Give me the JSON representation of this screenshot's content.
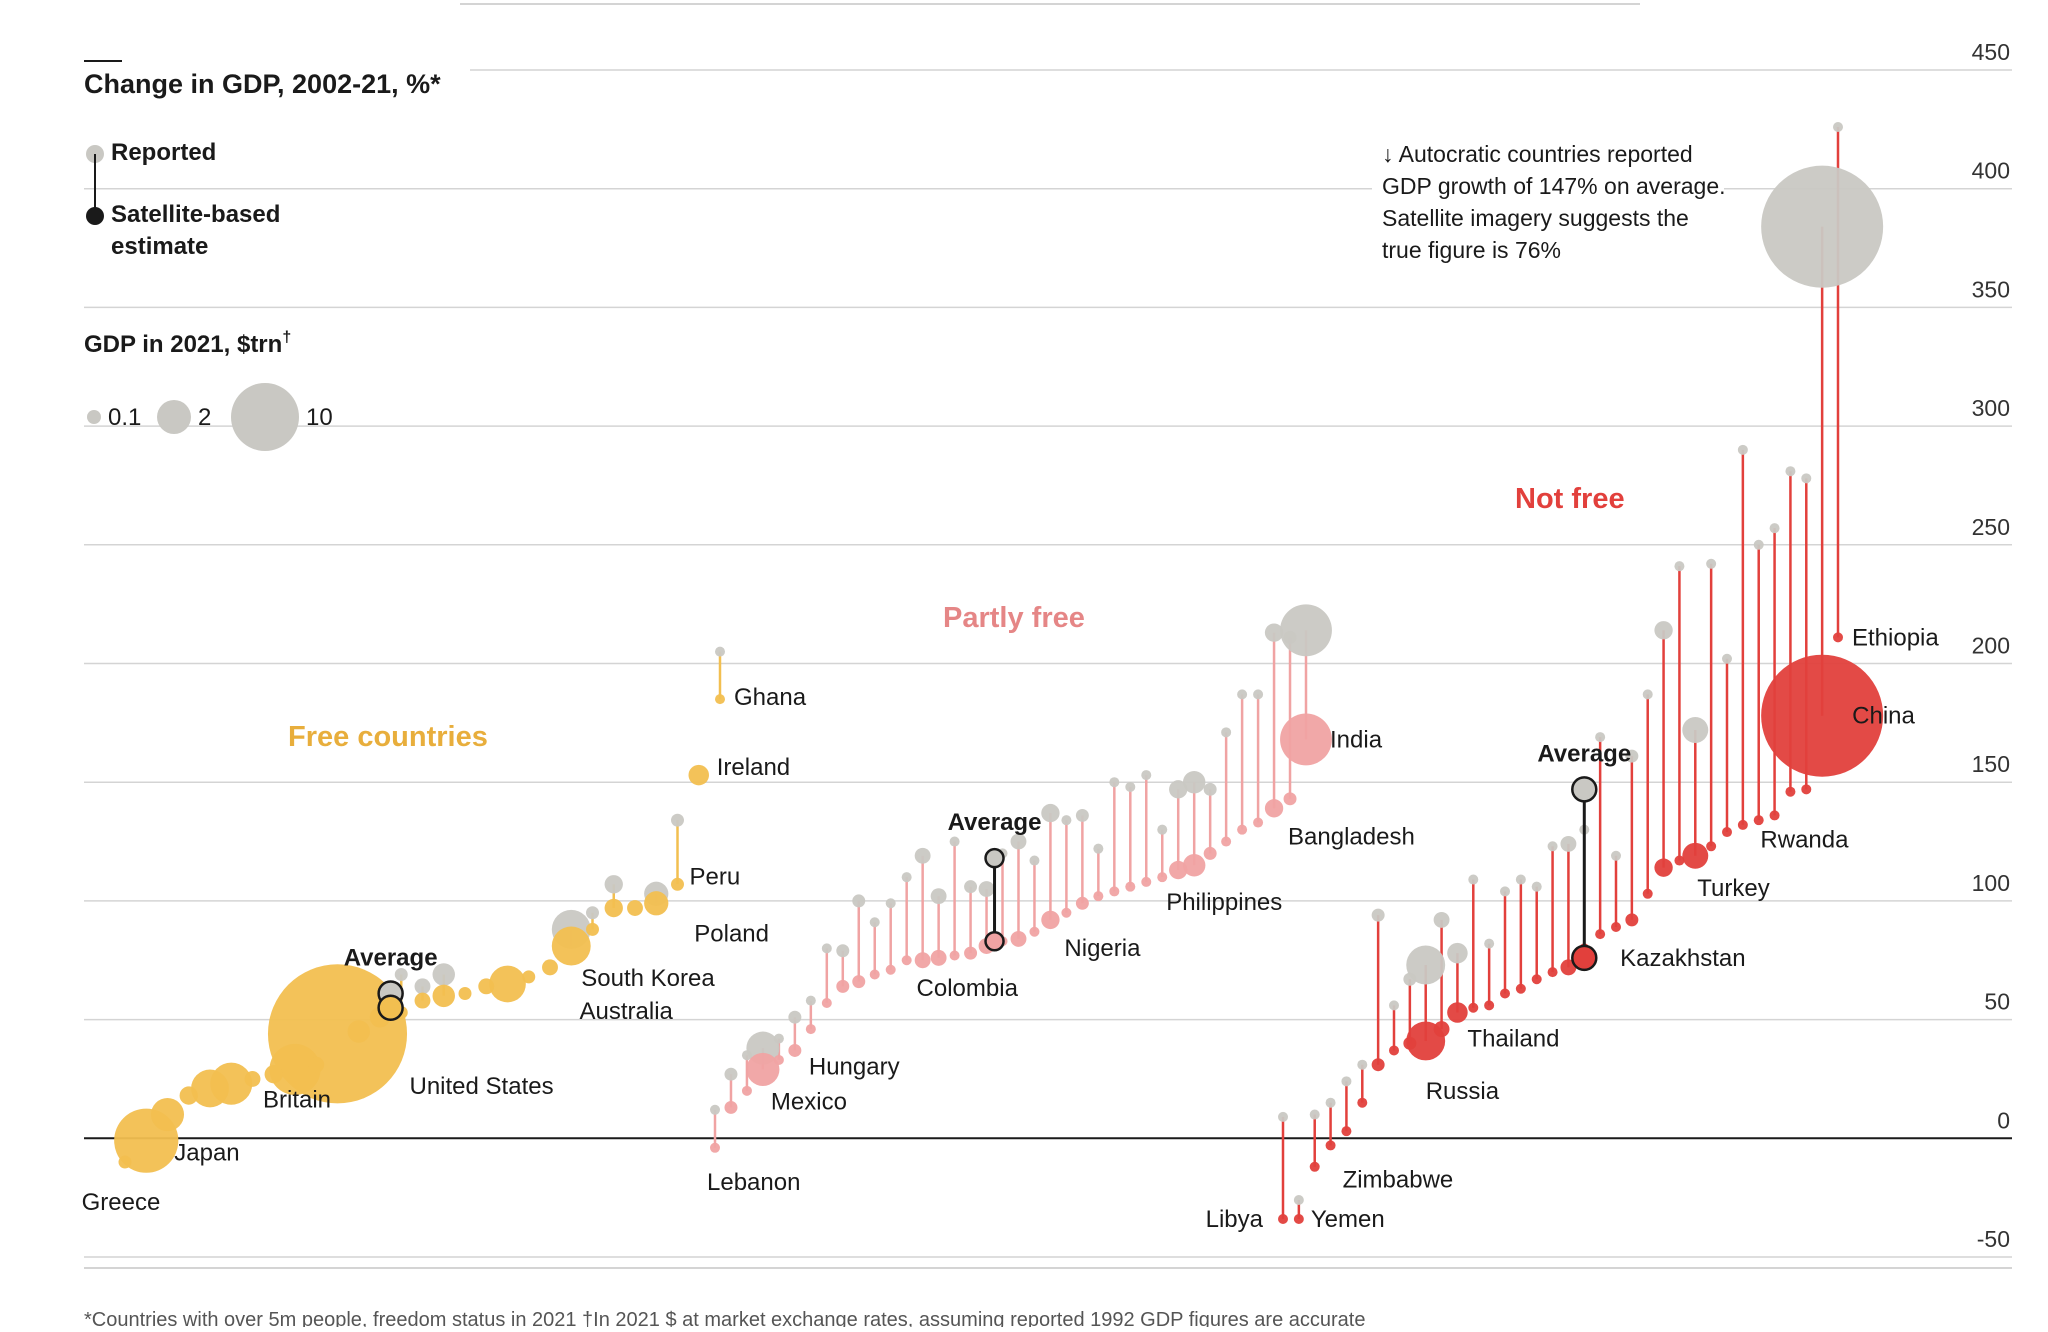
{
  "title": "Change in GDP, 2002-21, %*",
  "legend": {
    "reported": "Reported",
    "satellite_line1": "Satellite-based",
    "satellite_line2": "estimate",
    "size_title": "GDP in 2021, $trn",
    "size_title_dagger": "†",
    "sizes": [
      "0.1",
      "2",
      "10"
    ]
  },
  "annotation": {
    "line1": "Autocratic countries reported",
    "line2": "GDP growth of 147% on average.",
    "line3": "Satellite imagery suggests the",
    "line4": "true figure is 76%"
  },
  "footnote": "*Countries with over 5m people, freedom status in 2021 †In 2021 $ at market exchange rates, assuming reported 1992 GDP figures are accurate",
  "colors": {
    "free": "#f2bf50",
    "free_text": "#e8ae3c",
    "partly_free": "#f0a3a3",
    "partly_free_text": "#e58686",
    "not_free": "#e2403c",
    "not_free_text": "#e2403c",
    "reported": "#c9c8c3",
    "grid": "#d4d4d4",
    "zero": "#1a1a1a"
  },
  "chart_data": {
    "type": "scatter",
    "title": "Change in GDP, 2002-21, %*",
    "ylim": [
      -50,
      450
    ],
    "yticks": [
      450,
      400,
      350,
      300,
      250,
      200,
      150,
      100,
      50,
      0,
      -50
    ],
    "grid": true,
    "groups": [
      {
        "name": "Free countries",
        "average_label": "Average",
        "average": {
          "reported": 61,
          "satellite": 55
        },
        "countries": [
          {
            "label": "Greece",
            "satellite": -10,
            "gdp": 0.2
          },
          {
            "label": "Japan",
            "satellite": -1,
            "gdp": 4.9
          },
          {
            "label": "",
            "satellite": 10,
            "gdp": 1.3
          },
          {
            "label": "",
            "satellite": 18,
            "gdp": 0.4
          },
          {
            "label": "",
            "satellite": 21,
            "gdp": 1.7
          },
          {
            "label": "",
            "satellite": 23,
            "gdp": 2.1
          },
          {
            "label": "",
            "satellite": 25,
            "gdp": 0.3
          },
          {
            "label": "",
            "satellite": 27,
            "gdp": 0.4
          },
          {
            "label": "Britain",
            "satellite": 29,
            "gdp": 3.1
          },
          {
            "label": "",
            "satellite": 31,
            "gdp": 0.3
          },
          {
            "label": "United States",
            "satellite": 44,
            "gdp": 23
          },
          {
            "label": "",
            "satellite": 45,
            "gdp": 0.6
          },
          {
            "label": "",
            "satellite": 51,
            "gdp": 0.5
          },
          {
            "label": "",
            "reported": 69,
            "satellite": 53,
            "gdp": 0.2
          },
          {
            "label": "",
            "reported": 64,
            "satellite": 58,
            "gdp": 0.3
          },
          {
            "label": "",
            "reported": 69,
            "satellite": 60,
            "gdp": 0.6
          },
          {
            "label": "",
            "satellite": 61,
            "gdp": 0.2
          },
          {
            "label": "",
            "satellite": 64,
            "gdp": 0.3
          },
          {
            "label": "Australia",
            "satellite": 65,
            "gdp": 1.6
          },
          {
            "label": "",
            "satellite": 68,
            "gdp": 0.2
          },
          {
            "label": "",
            "satellite": 72,
            "gdp": 0.3
          },
          {
            "label": "South Korea",
            "reported": 88,
            "satellite": 81,
            "gdp": 1.8
          },
          {
            "label": "",
            "reported": 95,
            "satellite": 88,
            "gdp": 0.2
          },
          {
            "label": "",
            "reported": 107,
            "satellite": 97,
            "gdp": 0.4
          },
          {
            "label": "",
            "satellite": 97,
            "gdp": 0.3
          },
          {
            "label": "Poland",
            "reported": 103,
            "satellite": 99,
            "gdp": 0.7
          },
          {
            "label": "Peru",
            "reported": 134,
            "satellite": 107,
            "gdp": 0.2
          },
          {
            "label": "Ireland",
            "satellite": 153,
            "gdp": 0.5
          },
          {
            "label": "Ghana",
            "reported": 205,
            "satellite": 185,
            "gdp": 0.1
          }
        ]
      },
      {
        "name": "Partly free",
        "average_label": "Average",
        "average": {
          "reported": 118,
          "satellite": 83
        },
        "countries": [
          {
            "label": "Lebanon",
            "reported": 12,
            "satellite": -4,
            "gdp": 0.05
          },
          {
            "label": "",
            "reported": 27,
            "satellite": 13,
            "gdp": 0.2
          },
          {
            "label": "",
            "reported": 35,
            "satellite": 20,
            "gdp": 0.1
          },
          {
            "label": "Mexico",
            "reported": 38,
            "satellite": 29,
            "gdp": 1.3
          },
          {
            "label": "",
            "reported": 42,
            "satellite": 33,
            "gdp": 0.1
          },
          {
            "label": "Hungary",
            "reported": 51,
            "satellite": 37,
            "gdp": 0.2
          },
          {
            "label": "",
            "reported": 58,
            "satellite": 46,
            "gdp": 0.1
          },
          {
            "label": "",
            "reported": 80,
            "satellite": 57,
            "gdp": 0.1
          },
          {
            "label": "",
            "reported": 79,
            "satellite": 64,
            "gdp": 0.2
          },
          {
            "label": "",
            "reported": 100,
            "satellite": 66,
            "gdp": 0.2
          },
          {
            "label": "",
            "reported": 91,
            "satellite": 69,
            "gdp": 0.1
          },
          {
            "label": "",
            "reported": 99,
            "satellite": 71,
            "gdp": 0.1
          },
          {
            "label": "",
            "reported": 110,
            "satellite": 75,
            "gdp": 0.1
          },
          {
            "label": "",
            "reported": 119,
            "satellite": 75,
            "gdp": 0.3
          },
          {
            "label": "",
            "reported": 102,
            "satellite": 76,
            "gdp": 0.3
          },
          {
            "label": "",
            "reported": 125,
            "satellite": 77,
            "gdp": 0.1
          },
          {
            "label": "",
            "reported": 106,
            "satellite": 78,
            "gdp": 0.2
          },
          {
            "label": "Colombia",
            "reported": 105,
            "satellite": 81,
            "gdp": 0.3
          },
          {
            "label": "",
            "reported": 120,
            "satellite": 83,
            "gdp": 0.1
          },
          {
            "label": "",
            "reported": 125,
            "satellite": 84,
            "gdp": 0.3
          },
          {
            "label": "",
            "reported": 117,
            "satellite": 87,
            "gdp": 0.1
          },
          {
            "label": "Nigeria",
            "reported": 137,
            "satellite": 92,
            "gdp": 0.4
          },
          {
            "label": "",
            "reported": 134,
            "satellite": 95,
            "gdp": 0.1
          },
          {
            "label": "",
            "reported": 136,
            "satellite": 99,
            "gdp": 0.2
          },
          {
            "label": "",
            "reported": 122,
            "satellite": 102,
            "gdp": 0.1
          },
          {
            "label": "",
            "reported": 150,
            "satellite": 104,
            "gdp": 0.1
          },
          {
            "label": "",
            "reported": 148,
            "satellite": 106,
            "gdp": 0.1
          },
          {
            "label": "",
            "reported": 153,
            "satellite": 108,
            "gdp": 0.1
          },
          {
            "label": "",
            "reported": 130,
            "satellite": 110,
            "gdp": 0.1
          },
          {
            "label": "Philippines",
            "reported": 147,
            "satellite": 113,
            "gdp": 0.4
          },
          {
            "label": "",
            "reported": 150,
            "satellite": 115,
            "gdp": 0.6
          },
          {
            "label": "",
            "reported": 147,
            "satellite": 120,
            "gdp": 0.2
          },
          {
            "label": "",
            "reported": 171,
            "satellite": 125,
            "gdp": 0.1
          },
          {
            "label": "",
            "reported": 187,
            "satellite": 130,
            "gdp": 0.1
          },
          {
            "label": "",
            "reported": 187,
            "satellite": 133,
            "gdp": 0.1
          },
          {
            "label": "Bangladesh",
            "reported": 213,
            "satellite": 139,
            "gdp": 0.4
          },
          {
            "label": "",
            "reported": 211,
            "satellite": 143,
            "gdp": 0.2
          },
          {
            "label": "India",
            "reported": 214,
            "satellite": 168,
            "gdp": 3.2
          }
        ]
      },
      {
        "name": "Not free",
        "average_label": "Average",
        "average": {
          "reported": 147,
          "satellite": 76
        },
        "countries": [
          {
            "label": "Libya",
            "reported": 9,
            "satellite": -34,
            "gdp": 0.05
          },
          {
            "label": "Yemen",
            "reported": -26,
            "satellite": -34,
            "gdp": 0.05
          },
          {
            "label": "",
            "reported": 10,
            "satellite": -12,
            "gdp": 0.05
          },
          {
            "label": "Zimbabwe",
            "reported": 15,
            "satellite": -3,
            "gdp": 0.05
          },
          {
            "label": "",
            "reported": 24,
            "satellite": 3,
            "gdp": 0.05
          },
          {
            "label": "",
            "reported": 31,
            "satellite": 15,
            "gdp": 0.1
          },
          {
            "label": "",
            "reported": 94,
            "satellite": 31,
            "gdp": 0.2
          },
          {
            "label": "",
            "reported": 56,
            "satellite": 37,
            "gdp": 0.1
          },
          {
            "label": "",
            "reported": 67,
            "satellite": 40,
            "gdp": 0.2
          },
          {
            "label": "Russia",
            "reported": 73,
            "satellite": 41,
            "gdp": 1.8
          },
          {
            "label": "",
            "reported": 92,
            "satellite": 46,
            "gdp": 0.3
          },
          {
            "label": "Thailand",
            "reported": 78,
            "satellite": 53,
            "gdp": 0.5
          },
          {
            "label": "",
            "reported": 109,
            "satellite": 55,
            "gdp": 0.1
          },
          {
            "label": "",
            "reported": 82,
            "satellite": 56,
            "gdp": 0.1
          },
          {
            "label": "",
            "reported": 104,
            "satellite": 61,
            "gdp": 0.1
          },
          {
            "label": "",
            "reported": 109,
            "satellite": 63,
            "gdp": 0.1
          },
          {
            "label": "",
            "reported": 106,
            "satellite": 67,
            "gdp": 0.1
          },
          {
            "label": "",
            "reported": 123,
            "satellite": 70,
            "gdp": 0.1
          },
          {
            "label": "",
            "reported": 124,
            "satellite": 72,
            "gdp": 0.3
          },
          {
            "label": "",
            "reported": 130,
            "satellite": 80,
            "gdp": 0.1
          },
          {
            "label": "Kazakhstan",
            "reported": 169,
            "satellite": 86,
            "gdp": 0.1
          },
          {
            "label": "",
            "reported": 119,
            "satellite": 89,
            "gdp": 0.1
          },
          {
            "label": "",
            "reported": 161,
            "satellite": 92,
            "gdp": 0.2
          },
          {
            "label": "",
            "reported": 187,
            "satellite": 103,
            "gdp": 0.1
          },
          {
            "label": "",
            "reported": 214,
            "satellite": 114,
            "gdp": 0.4
          },
          {
            "label": "",
            "reported": 241,
            "satellite": 117,
            "gdp": 0.1
          },
          {
            "label": "Turkey",
            "reported": 172,
            "satellite": 119,
            "gdp": 0.8
          },
          {
            "label": "",
            "reported": 242,
            "satellite": 123,
            "gdp": 0.1
          },
          {
            "label": "",
            "reported": 202,
            "satellite": 129,
            "gdp": 0.1
          },
          {
            "label": "",
            "reported": 290,
            "satellite": 132,
            "gdp": 0.1
          },
          {
            "label": "",
            "reported": 250,
            "satellite": 134,
            "gdp": 0.1
          },
          {
            "label": "",
            "reported": 257,
            "satellite": 136,
            "gdp": 0.1
          },
          {
            "label": "Rwanda",
            "reported": 281,
            "satellite": 146,
            "gdp": 0.1
          },
          {
            "label": "",
            "reported": 278,
            "satellite": 147,
            "gdp": 0.1
          },
          {
            "label": "China",
            "reported": 384,
            "satellite": 178,
            "gdp": 17.7
          },
          {
            "label": "Ethiopia",
            "reported": 426,
            "satellite": 211,
            "gdp": 0.1
          }
        ]
      }
    ]
  }
}
